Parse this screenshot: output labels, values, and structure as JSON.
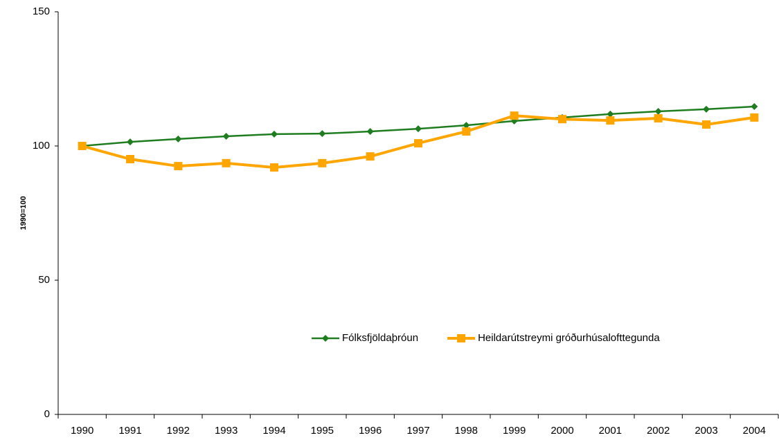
{
  "chart_data": {
    "type": "line",
    "y_label": "1990=100",
    "categories": [
      "1990",
      "1991",
      "1992",
      "1993",
      "1994",
      "1995",
      "1996",
      "1997",
      "1998",
      "1999",
      "2000",
      "2001",
      "2002",
      "2003",
      "2004"
    ],
    "series": [
      {
        "name": "Fólksfjöldaþróun",
        "color": "#1e7d1e",
        "marker": "diamond",
        "values": [
          100,
          101.5,
          102.6,
          103.6,
          104.4,
          104.6,
          105.4,
          106.4,
          107.7,
          109.3,
          110.6,
          111.9,
          112.9,
          113.7,
          114.7
        ]
      },
      {
        "name": "Heildarútstreymi gróðurhúsalofttegunda",
        "color": "#ffa500",
        "marker": "square",
        "values": [
          100,
          95.1,
          92.5,
          93.6,
          92.0,
          93.6,
          96.1,
          101,
          105.4,
          111.3,
          110,
          109.5,
          110.3,
          108,
          110.6
        ]
      }
    ],
    "ylim": [
      0,
      150
    ],
    "yticks": [
      0,
      50,
      100,
      150
    ],
    "grid": false,
    "legend": "lower center"
  }
}
